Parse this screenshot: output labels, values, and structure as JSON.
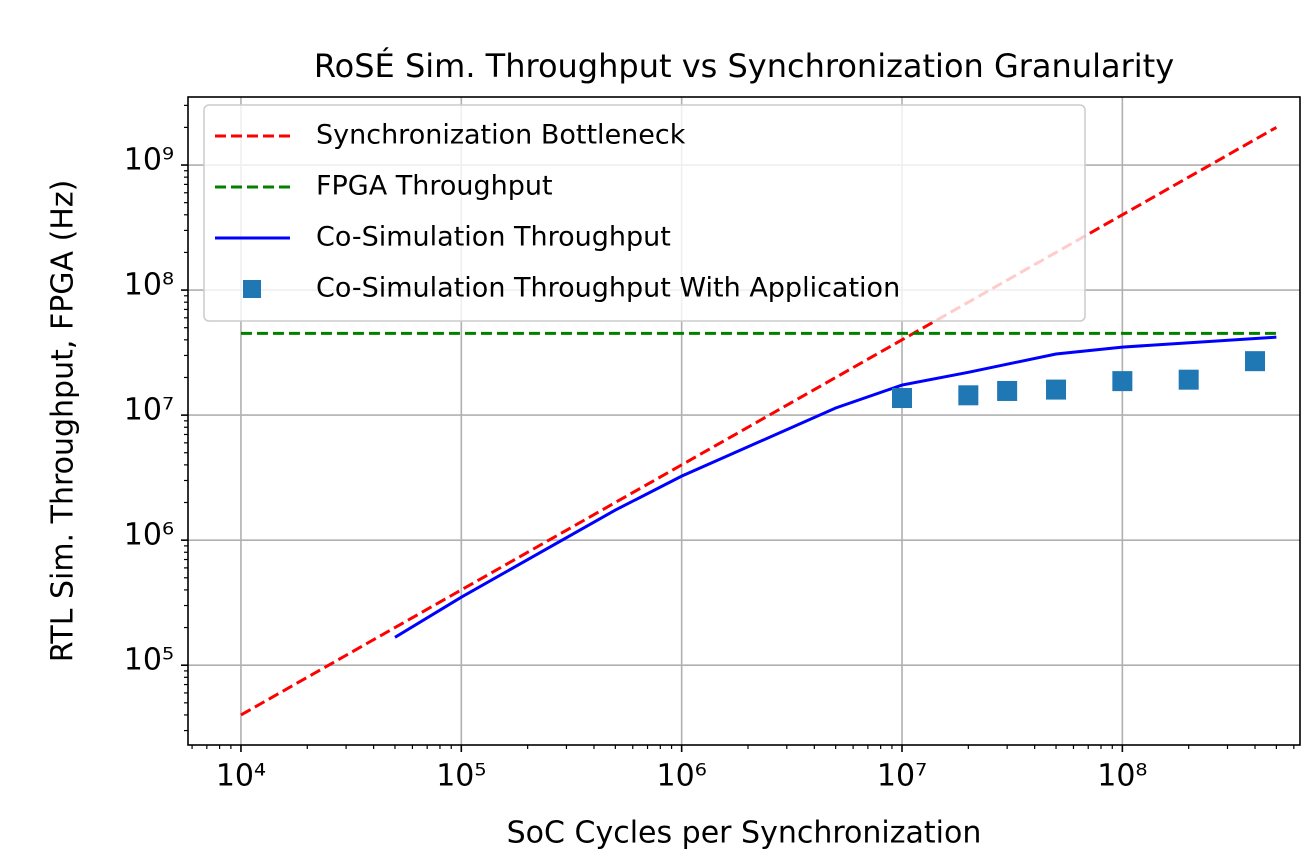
{
  "chart_data": {
    "type": "line",
    "title": "RoSÉ Sim. Throughput vs Synchronization Granularity",
    "xlabel": "SoC Cycles per Synchronization",
    "ylabel": "RTL Sim. Throughput, FPGA (Hz)",
    "xscale": "log",
    "yscale": "log",
    "xlim": [
      5750,
      640000000
    ],
    "ylim": [
      23000,
      3500000000
    ],
    "xticks": [
      {
        "value": 10000,
        "label": "10⁴"
      },
      {
        "value": 100000,
        "label": "10⁵"
      },
      {
        "value": 1000000,
        "label": "10⁶"
      },
      {
        "value": 10000000,
        "label": "10⁷"
      },
      {
        "value": 100000000,
        "label": "10⁸"
      }
    ],
    "yticks": [
      {
        "value": 100000,
        "label": "10⁵"
      },
      {
        "value": 1000000,
        "label": "10⁶"
      },
      {
        "value": 10000000,
        "label": "10⁷"
      },
      {
        "value": 100000000,
        "label": "10⁸"
      },
      {
        "value": 1000000000,
        "label": "10⁹"
      }
    ],
    "minor_ticks": true,
    "grid": true,
    "legend": "upper left",
    "series": [
      {
        "name": "Synchronization Bottleneck",
        "color": "#ff0000",
        "style": "dashed",
        "x": [
          10000,
          100000,
          1000000,
          10000000,
          100000000,
          500000000
        ],
        "values": [
          40000,
          400000,
          4000000,
          40000000,
          400000000,
          2000000000
        ]
      },
      {
        "name": "FPGA Throughput",
        "color": "#008000",
        "style": "dashed",
        "x": [
          10000,
          500000000
        ],
        "values": [
          45000000,
          45000000
        ]
      },
      {
        "name": "Co-Simulation Throughput",
        "color": "#0000ff",
        "style": "solid",
        "x": [
          50000,
          100000,
          500000,
          1000000,
          5000000,
          10000000,
          20000000,
          50000000,
          100000000,
          500000000
        ],
        "values": [
          167000,
          350000,
          1740000,
          3250000,
          11400000,
          17400000,
          22000000,
          30800000,
          35000000,
          42000000
        ]
      },
      {
        "name": "Co-Simulation Throughput With Application",
        "color": "#1f77b4",
        "style": "markers",
        "x": [
          10000000,
          20000000,
          30000000,
          50000000,
          100000000,
          200000000,
          400000000
        ],
        "values": [
          13700000,
          14400000,
          15600000,
          16000000,
          18700000,
          19200000,
          27000000
        ]
      }
    ]
  }
}
